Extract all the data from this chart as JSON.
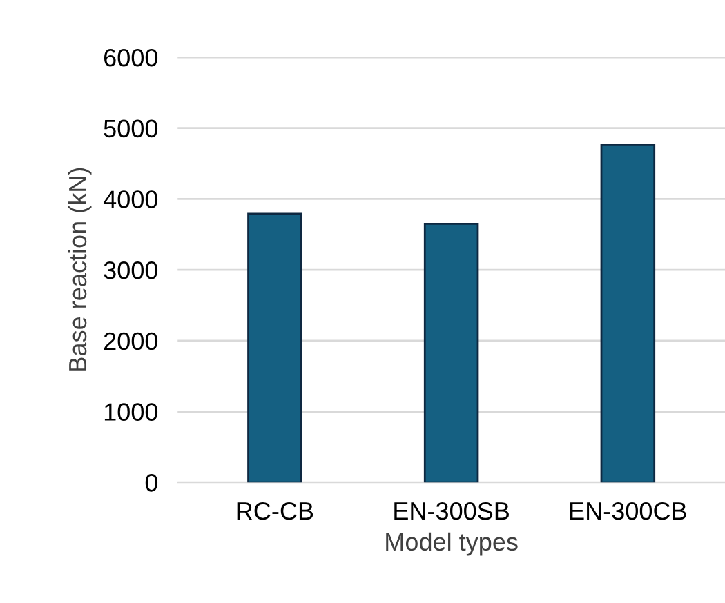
{
  "chart_data": {
    "type": "bar",
    "xlabel": "Model types",
    "ylabel": "Base reaction (kN)",
    "categories": [
      "RC-CB",
      "EN-300SB",
      "EN-300CB"
    ],
    "series": [
      {
        "color": "#156082",
        "values": [
          3790,
          3650,
          4770
        ]
      }
    ],
    "ylim": [
      0,
      6000
    ],
    "yticks": [
      0,
      1000,
      2000,
      3000,
      4000,
      5000,
      6000
    ],
    "grid": "y"
  }
}
